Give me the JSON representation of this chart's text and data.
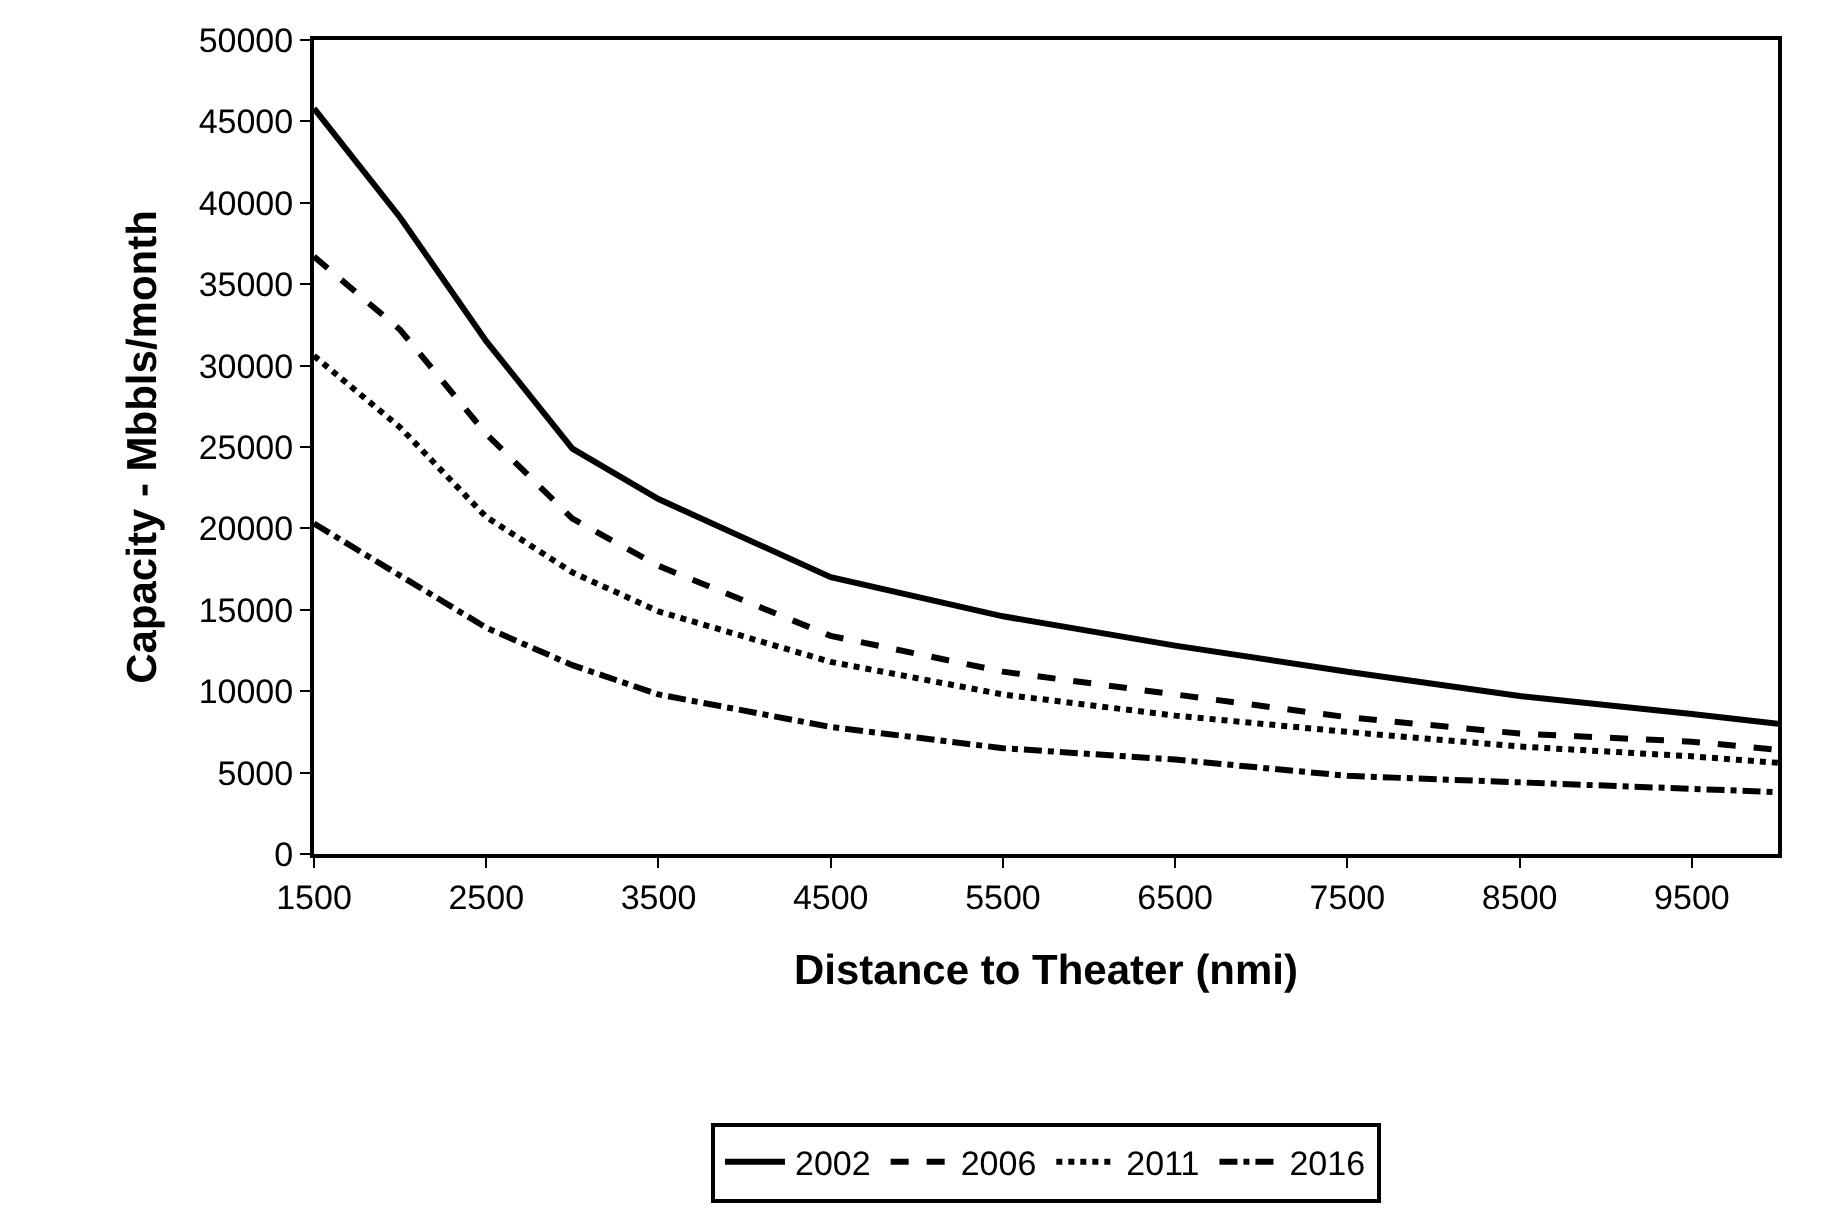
{
  "chart_data": {
    "type": "line",
    "xlabel": "Distance to Theater (nmi)",
    "ylabel": "Capacity - Mbbls/month",
    "x": [
      1500,
      2000,
      2500,
      3000,
      3500,
      4500,
      5500,
      6500,
      7500,
      8500,
      9500,
      10000
    ],
    "series": [
      {
        "name": "2002",
        "color": "#000000",
        "line_style": "solid",
        "values": [
          45800,
          39100,
          31500,
          24900,
          21800,
          17000,
          14600,
          12800,
          11200,
          9700,
          8600,
          8000
        ]
      },
      {
        "name": "2006",
        "color": "#000000",
        "line_style": "dashed",
        "values": [
          36700,
          32200,
          25800,
          20600,
          17700,
          13400,
          11200,
          9800,
          8400,
          7400,
          6900,
          6400
        ]
      },
      {
        "name": "2011",
        "color": "#000000",
        "line_style": "dotted",
        "values": [
          30600,
          26200,
          20700,
          17300,
          14900,
          11800,
          9800,
          8500,
          7500,
          6600,
          6000,
          5600
        ]
      },
      {
        "name": "2016",
        "color": "#000000",
        "line_style": "dashdot",
        "values": [
          20300,
          17100,
          13900,
          11600,
          9800,
          7800,
          6500,
          5800,
          4800,
          4400,
          4000,
          3800
        ]
      }
    ],
    "xlim": [
      1500,
      10000
    ],
    "xticks": [
      1500,
      2500,
      3500,
      4500,
      5500,
      6500,
      7500,
      8500,
      9500
    ],
    "ylim": [
      0,
      50000
    ],
    "yticks": [
      0,
      5000,
      10000,
      15000,
      20000,
      25000,
      30000,
      35000,
      40000,
      45000,
      50000
    ],
    "legend": "bottom",
    "marker": "none"
  }
}
